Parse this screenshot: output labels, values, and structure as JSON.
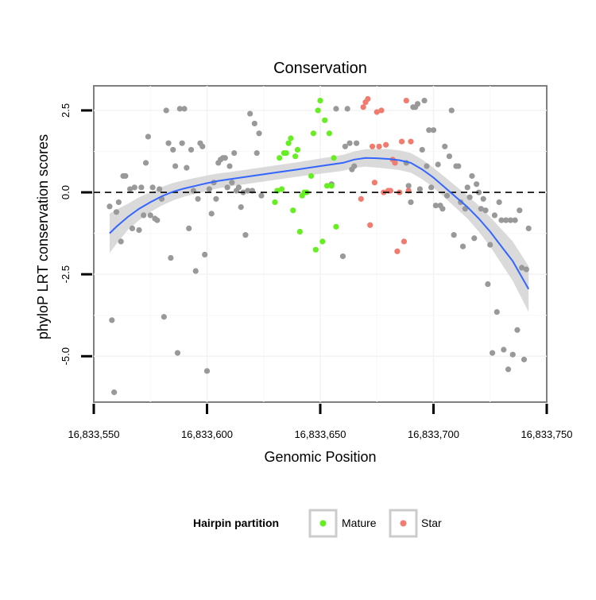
{
  "chart_data": {
    "type": "scatter",
    "title": "Conservation",
    "xlabel": "Genomic Position",
    "ylabel": "phyloP LRT conservation scores",
    "xlim": [
      16833550,
      16833750
    ],
    "ylim": [
      -6.4,
      3.25
    ],
    "x_ticks": [
      16833550,
      16833600,
      16833650,
      16833700,
      16833750
    ],
    "x_tick_labels": [
      "16,833,550",
      "16,833,600",
      "16,833,650",
      "16,833,700",
      "16,833,750"
    ],
    "y_ticks": [
      2.5,
      0.0,
      -2.5,
      -5.0
    ],
    "y_tick_labels": [
      "2.5",
      "0.0",
      "-2.5",
      "-5.0"
    ],
    "reference_line": 0,
    "legend": {
      "title": "Hairpin partition",
      "position": "bottom",
      "entries": [
        {
          "label": "Mature",
          "color": "#66ee22"
        },
        {
          "label": "Star",
          "color": "#f07b6e"
        }
      ]
    },
    "colors": {
      "other": "#999999",
      "Mature": "#66ee22",
      "Star": "#f07b6e",
      "smooth": "#3366ff",
      "band": "#d4d4d4"
    },
    "series": [
      {
        "name": "Other",
        "points": [
          [
            16833557,
            -0.43
          ],
          [
            16833558,
            -3.9
          ],
          [
            16833559,
            -6.1
          ],
          [
            16833560,
            -0.6
          ],
          [
            16833561,
            -0.3
          ],
          [
            16833562,
            -1.5
          ],
          [
            16833563,
            0.5
          ],
          [
            16833564,
            0.5
          ],
          [
            16833566,
            0.1
          ],
          [
            16833567,
            -1.1
          ],
          [
            16833568,
            0.15
          ],
          [
            16833570,
            -1.15
          ],
          [
            16833571,
            0.15
          ],
          [
            16833572,
            -0.7
          ],
          [
            16833573,
            0.9
          ],
          [
            16833574,
            1.7
          ],
          [
            16833575,
            -0.7
          ],
          [
            16833576,
            0.15
          ],
          [
            16833577,
            -0.8
          ],
          [
            16833578,
            -0.85
          ],
          [
            16833579,
            0.1
          ],
          [
            16833580,
            -0.2
          ],
          [
            16833581,
            -3.8
          ],
          [
            16833582,
            2.5
          ],
          [
            16833583,
            1.5
          ],
          [
            16833584,
            -2.0
          ],
          [
            16833585,
            1.3
          ],
          [
            16833586,
            0.8
          ],
          [
            16833587,
            -4.9
          ],
          [
            16833588,
            2.55
          ],
          [
            16833589,
            1.5
          ],
          [
            16833590,
            2.55
          ],
          [
            16833591,
            0.75
          ],
          [
            16833592,
            -1.1
          ],
          [
            16833593,
            1.3
          ],
          [
            16833594,
            0.05
          ],
          [
            16833595,
            -2.4
          ],
          [
            16833596,
            -0.2
          ],
          [
            16833597,
            1.5
          ],
          [
            16833598,
            1.4
          ],
          [
            16833599,
            -1.9
          ],
          [
            16833600,
            -5.45
          ],
          [
            16833601,
            0.1
          ],
          [
            16833602,
            -0.65
          ],
          [
            16833603,
            0.3
          ],
          [
            16833604,
            -0.2
          ],
          [
            16833605,
            0.9
          ],
          [
            16833606,
            1.0
          ],
          [
            16833607,
            1.05
          ],
          [
            16833608,
            1.05
          ],
          [
            16833609,
            0.15
          ],
          [
            16833610,
            0.8
          ],
          [
            16833611,
            0.3
          ],
          [
            16833612,
            1.2
          ],
          [
            16833613,
            0.05
          ],
          [
            16833614,
            0.15
          ],
          [
            16833615,
            -0.45
          ],
          [
            16833616,
            0.0
          ],
          [
            16833617,
            -1.3
          ],
          [
            16833618,
            0.05
          ],
          [
            16833619,
            2.4
          ],
          [
            16833620,
            0.05
          ],
          [
            16833621,
            2.1
          ],
          [
            16833622,
            1.2
          ],
          [
            16833623,
            1.8
          ],
          [
            16833624,
            -0.1
          ],
          [
            16833655,
            0.25
          ],
          [
            16833657,
            2.55
          ],
          [
            16833660,
            -1.95
          ],
          [
            16833661,
            1.4
          ],
          [
            16833662,
            2.55
          ],
          [
            16833663,
            1.5
          ],
          [
            16833664,
            0.7
          ],
          [
            16833665,
            0.8
          ],
          [
            16833666,
            1.5
          ],
          [
            16833688,
            0.9
          ],
          [
            16833689,
            0.2
          ],
          [
            16833690,
            -0.3
          ],
          [
            16833691,
            2.6
          ],
          [
            16833692,
            2.6
          ],
          [
            16833693,
            2.7
          ],
          [
            16833694,
            0.1
          ],
          [
            16833695,
            1.3
          ],
          [
            16833696,
            2.8
          ],
          [
            16833697,
            0.8
          ],
          [
            16833698,
            1.9
          ],
          [
            16833699,
            0.15
          ],
          [
            16833700,
            1.9
          ],
          [
            16833701,
            -0.4
          ],
          [
            16833702,
            0.85
          ],
          [
            16833703,
            -0.4
          ],
          [
            16833704,
            -0.5
          ],
          [
            16833705,
            1.4
          ],
          [
            16833706,
            -0.1
          ],
          [
            16833707,
            1.1
          ],
          [
            16833708,
            2.5
          ],
          [
            16833709,
            -1.3
          ],
          [
            16833710,
            0.8
          ],
          [
            16833711,
            0.8
          ],
          [
            16833712,
            -0.3
          ],
          [
            16833713,
            -1.65
          ],
          [
            16833714,
            -0.5
          ],
          [
            16833715,
            0.15
          ],
          [
            16833716,
            -0.15
          ],
          [
            16833717,
            0.5
          ],
          [
            16833718,
            -1.4
          ],
          [
            16833719,
            0.25
          ],
          [
            16833720,
            0.0
          ],
          [
            16833721,
            -0.5
          ],
          [
            16833722,
            -0.2
          ],
          [
            16833723,
            -0.55
          ],
          [
            16833724,
            -2.8
          ],
          [
            16833725,
            -1.6
          ],
          [
            16833726,
            -4.9
          ],
          [
            16833727,
            -0.7
          ],
          [
            16833728,
            -3.65
          ],
          [
            16833729,
            -0.3
          ],
          [
            16833730,
            -0.85
          ],
          [
            16833731,
            -4.8
          ],
          [
            16833732,
            -0.85
          ],
          [
            16833733,
            -5.4
          ],
          [
            16833734,
            -0.85
          ],
          [
            16833735,
            -4.95
          ],
          [
            16833736,
            -0.85
          ],
          [
            16833737,
            -4.2
          ],
          [
            16833738,
            -0.55
          ],
          [
            16833739,
            -2.3
          ],
          [
            16833740,
            -5.1
          ],
          [
            16833741,
            -2.35
          ],
          [
            16833742,
            -1.1
          ]
        ]
      },
      {
        "name": "Mature",
        "points": [
          [
            16833630,
            -0.3
          ],
          [
            16833631,
            0.05
          ],
          [
            16833632,
            1.05
          ],
          [
            16833633,
            0.1
          ],
          [
            16833634,
            1.2
          ],
          [
            16833635,
            1.2
          ],
          [
            16833636,
            1.5
          ],
          [
            16833637,
            1.65
          ],
          [
            16833638,
            -0.55
          ],
          [
            16833639,
            1.1
          ],
          [
            16833640,
            1.3
          ],
          [
            16833641,
            -1.2
          ],
          [
            16833642,
            -0.1
          ],
          [
            16833643,
            0.0
          ],
          [
            16833644,
            0.0
          ],
          [
            16833646,
            0.5
          ],
          [
            16833647,
            1.8
          ],
          [
            16833648,
            -1.75
          ],
          [
            16833649,
            2.5
          ],
          [
            16833650,
            2.8
          ],
          [
            16833651,
            -1.5
          ],
          [
            16833652,
            2.2
          ],
          [
            16833653,
            0.2
          ],
          [
            16833654,
            1.8
          ],
          [
            16833655,
            0.2
          ],
          [
            16833656,
            1.05
          ],
          [
            16833657,
            -1.05
          ]
        ]
      },
      {
        "name": "Star",
        "points": [
          [
            16833668,
            -0.2
          ],
          [
            16833669,
            2.6
          ],
          [
            16833670,
            2.75
          ],
          [
            16833671,
            2.85
          ],
          [
            16833672,
            -1.0
          ],
          [
            16833673,
            1.4
          ],
          [
            16833674,
            0.3
          ],
          [
            16833675,
            2.45
          ],
          [
            16833676,
            1.4
          ],
          [
            16833677,
            2.5
          ],
          [
            16833678,
            0.0
          ],
          [
            16833679,
            1.45
          ],
          [
            16833680,
            0.05
          ],
          [
            16833681,
            0.05
          ],
          [
            16833682,
            1.0
          ],
          [
            16833683,
            0.9
          ],
          [
            16833684,
            -1.8
          ],
          [
            16833685,
            0.0
          ],
          [
            16833686,
            1.55
          ],
          [
            16833687,
            -1.5
          ],
          [
            16833688,
            2.8
          ],
          [
            16833689,
            0.05
          ],
          [
            16833690,
            1.55
          ]
        ]
      }
    ],
    "smooth_curve": [
      [
        16833557,
        -1.25
      ],
      [
        16833560,
        -1.05
      ],
      [
        16833565,
        -0.75
      ],
      [
        16833570,
        -0.5
      ],
      [
        16833575,
        -0.3
      ],
      [
        16833580,
        -0.12
      ],
      [
        16833585,
        0.02
      ],
      [
        16833590,
        0.12
      ],
      [
        16833595,
        0.2
      ],
      [
        16833600,
        0.28
      ],
      [
        16833605,
        0.35
      ],
      [
        16833610,
        0.4
      ],
      [
        16833620,
        0.5
      ],
      [
        16833630,
        0.6
      ],
      [
        16833640,
        0.7
      ],
      [
        16833650,
        0.8
      ],
      [
        16833660,
        0.9
      ],
      [
        16833665,
        1.0
      ],
      [
        16833670,
        1.05
      ],
      [
        16833675,
        1.04
      ],
      [
        16833680,
        1.02
      ],
      [
        16833685,
        0.98
      ],
      [
        16833690,
        0.9
      ],
      [
        16833695,
        0.7
      ],
      [
        16833700,
        0.45
      ],
      [
        16833705,
        0.15
      ],
      [
        16833710,
        -0.15
      ],
      [
        16833715,
        -0.45
      ],
      [
        16833720,
        -0.8
      ],
      [
        16833725,
        -1.2
      ],
      [
        16833730,
        -1.65
      ],
      [
        16833735,
        -2.1
      ],
      [
        16833742,
        -2.95
      ]
    ],
    "band_halfwidth": [
      [
        16833557,
        0.6
      ],
      [
        16833565,
        0.4
      ],
      [
        16833575,
        0.3
      ],
      [
        16833590,
        0.25
      ],
      [
        16833610,
        0.22
      ],
      [
        16833640,
        0.22
      ],
      [
        16833665,
        0.25
      ],
      [
        16833680,
        0.3
      ],
      [
        16833700,
        0.3
      ],
      [
        16833715,
        0.35
      ],
      [
        16833725,
        0.45
      ],
      [
        16833735,
        0.6
      ],
      [
        16833742,
        0.7
      ]
    ]
  }
}
